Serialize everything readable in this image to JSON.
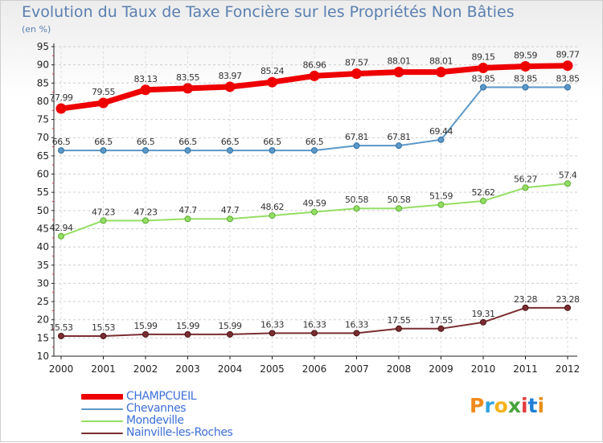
{
  "chart_data": {
    "type": "line",
    "title": "Evolution du Taux de Taxe Foncière sur les Propriétés Non Bâties",
    "subtitle": "(en %)",
    "x": [
      "2000",
      "2001",
      "2002",
      "2003",
      "2004",
      "2005",
      "2006",
      "2007",
      "2008",
      "2009",
      "2010",
      "2011",
      "2012"
    ],
    "ylim": [
      10,
      95
    ],
    "yticks": [
      "10",
      "15",
      "20",
      "25",
      "30",
      "35",
      "40",
      "45",
      "50",
      "55",
      "60",
      "65",
      "70",
      "75",
      "80",
      "85",
      "90",
      "95"
    ],
    "grid": true,
    "legend_position": "bottom-left",
    "series": [
      {
        "name": "CHAMPCUEIL",
        "color": "#ee0000",
        "values": [
          77.99,
          79.55,
          83.13,
          83.55,
          83.97,
          85.24,
          86.96,
          87.57,
          88.01,
          88.01,
          89.15,
          89.59,
          89.77
        ],
        "labels": [
          "77.99",
          "79.55",
          "83.13",
          "83.55",
          "83.97",
          "85.24",
          "86.96",
          "87.57",
          "88.01",
          "88.01",
          "89.15",
          "89.59",
          "89.77"
        ]
      },
      {
        "name": "Chevannes",
        "color": "#5c98c8",
        "values": [
          66.5,
          66.5,
          66.5,
          66.5,
          66.5,
          66.5,
          66.5,
          67.81,
          67.81,
          69.44,
          83.85,
          83.85,
          83.85
        ],
        "labels": [
          "66.5",
          "66.5",
          "66.5",
          "66.5",
          "66.5",
          "66.5",
          "66.5",
          "67.81",
          "67.81",
          "69.44",
          "83.85",
          "83.85",
          "83.85"
        ]
      },
      {
        "name": "Mondeville",
        "color": "#94de63",
        "values": [
          42.94,
          47.23,
          47.23,
          47.7,
          47.7,
          48.62,
          49.59,
          50.58,
          50.58,
          51.59,
          52.62,
          56.27,
          57.4
        ],
        "labels": [
          "42.94",
          "47.23",
          "47.23",
          "47.7",
          "47.7",
          "48.62",
          "49.59",
          "50.58",
          "50.58",
          "51.59",
          "52.62",
          "56.27",
          "57.4"
        ]
      },
      {
        "name": "Nainville-les-Roches",
        "color": "#7a2e32",
        "values": [
          15.53,
          15.53,
          15.99,
          15.99,
          15.99,
          16.33,
          16.33,
          16.33,
          17.55,
          17.55,
          19.31,
          23.28,
          23.28
        ],
        "labels": [
          "15.53",
          "15.53",
          "15.99",
          "15.99",
          "15.99",
          "16.33",
          "16.33",
          "16.33",
          "17.55",
          "17.55",
          "19.31",
          "23.28",
          "23.28"
        ]
      }
    ]
  },
  "logo": {
    "text": "Proxiti",
    "letters": [
      "P",
      "r",
      "o",
      "x",
      "i",
      "t",
      "i"
    ],
    "colors": [
      "#f08a1c",
      "#2fa3e0",
      "#f5b21a",
      "#47a33b",
      "#e23b3b",
      "#1f7fd6",
      "#e98f1a"
    ]
  }
}
